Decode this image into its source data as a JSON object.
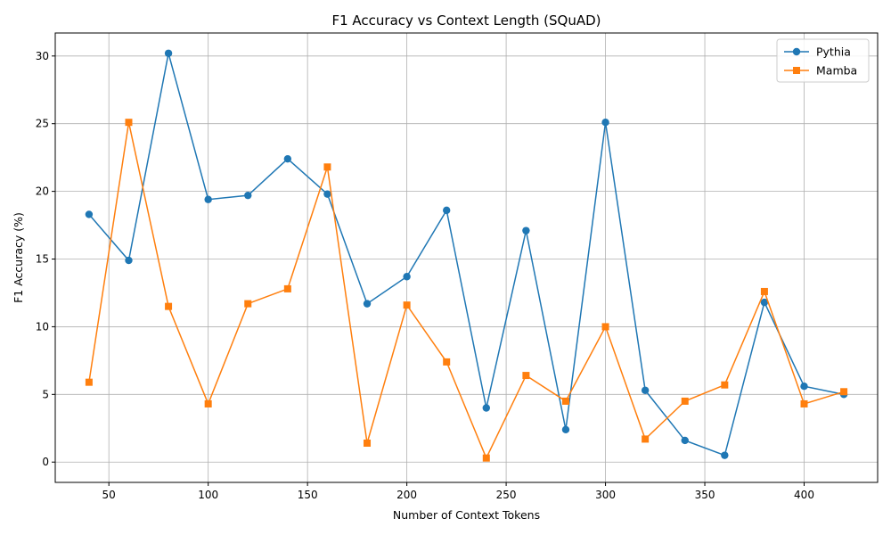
{
  "chart_data": {
    "type": "line",
    "title": "F1 Accuracy vs Context Length (SQuAD)",
    "xlabel": "Number of Context Tokens",
    "ylabel": "F1 Accuracy (%)",
    "xlim": [
      23,
      437
    ],
    "ylim": [
      -1.5,
      31.7
    ],
    "xticks": [
      50,
      100,
      150,
      200,
      250,
      300,
      350,
      400
    ],
    "yticks": [
      0,
      5,
      10,
      15,
      20,
      25,
      30
    ],
    "grid": true,
    "legend_position": "top-right",
    "x": [
      40,
      60,
      80,
      100,
      120,
      140,
      160,
      180,
      200,
      220,
      240,
      260,
      280,
      300,
      320,
      340,
      360,
      380,
      400,
      420
    ],
    "series": [
      {
        "name": "Pythia",
        "color": "#1f77b4",
        "marker": "circle",
        "values": [
          18.3,
          14.9,
          30.2,
          19.4,
          19.7,
          22.4,
          19.8,
          11.7,
          13.7,
          18.6,
          4.0,
          17.1,
          2.4,
          25.1,
          5.3,
          1.6,
          0.5,
          11.8,
          5.6,
          5.0
        ]
      },
      {
        "name": "Mamba",
        "color": "#ff7f0e",
        "marker": "square",
        "values": [
          5.9,
          25.1,
          11.5,
          4.3,
          11.7,
          12.8,
          21.8,
          1.4,
          11.6,
          7.4,
          0.3,
          6.4,
          4.5,
          10.0,
          1.7,
          4.5,
          5.7,
          12.6,
          4.3,
          5.2
        ]
      }
    ]
  }
}
